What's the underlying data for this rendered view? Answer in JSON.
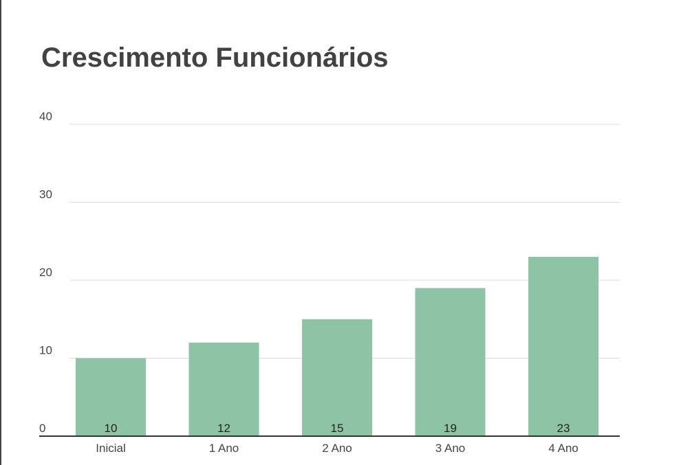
{
  "chart_data": {
    "type": "bar",
    "title": "Crescimento Funcionários",
    "xlabel": "",
    "ylabel": "",
    "categories": [
      "Inicial",
      "1 Ano",
      "2 Ano",
      "3 Ano",
      "4 Ano"
    ],
    "values": [
      10,
      12,
      15,
      19,
      23
    ],
    "data_labels": [
      "10",
      "12",
      "15",
      "19",
      "23"
    ],
    "ylim": [
      0,
      40
    ],
    "yticks": [
      "0",
      "10",
      "20",
      "30",
      "40"
    ],
    "bar_color": "#8fc3a6",
    "grid": true,
    "legend": "none"
  }
}
